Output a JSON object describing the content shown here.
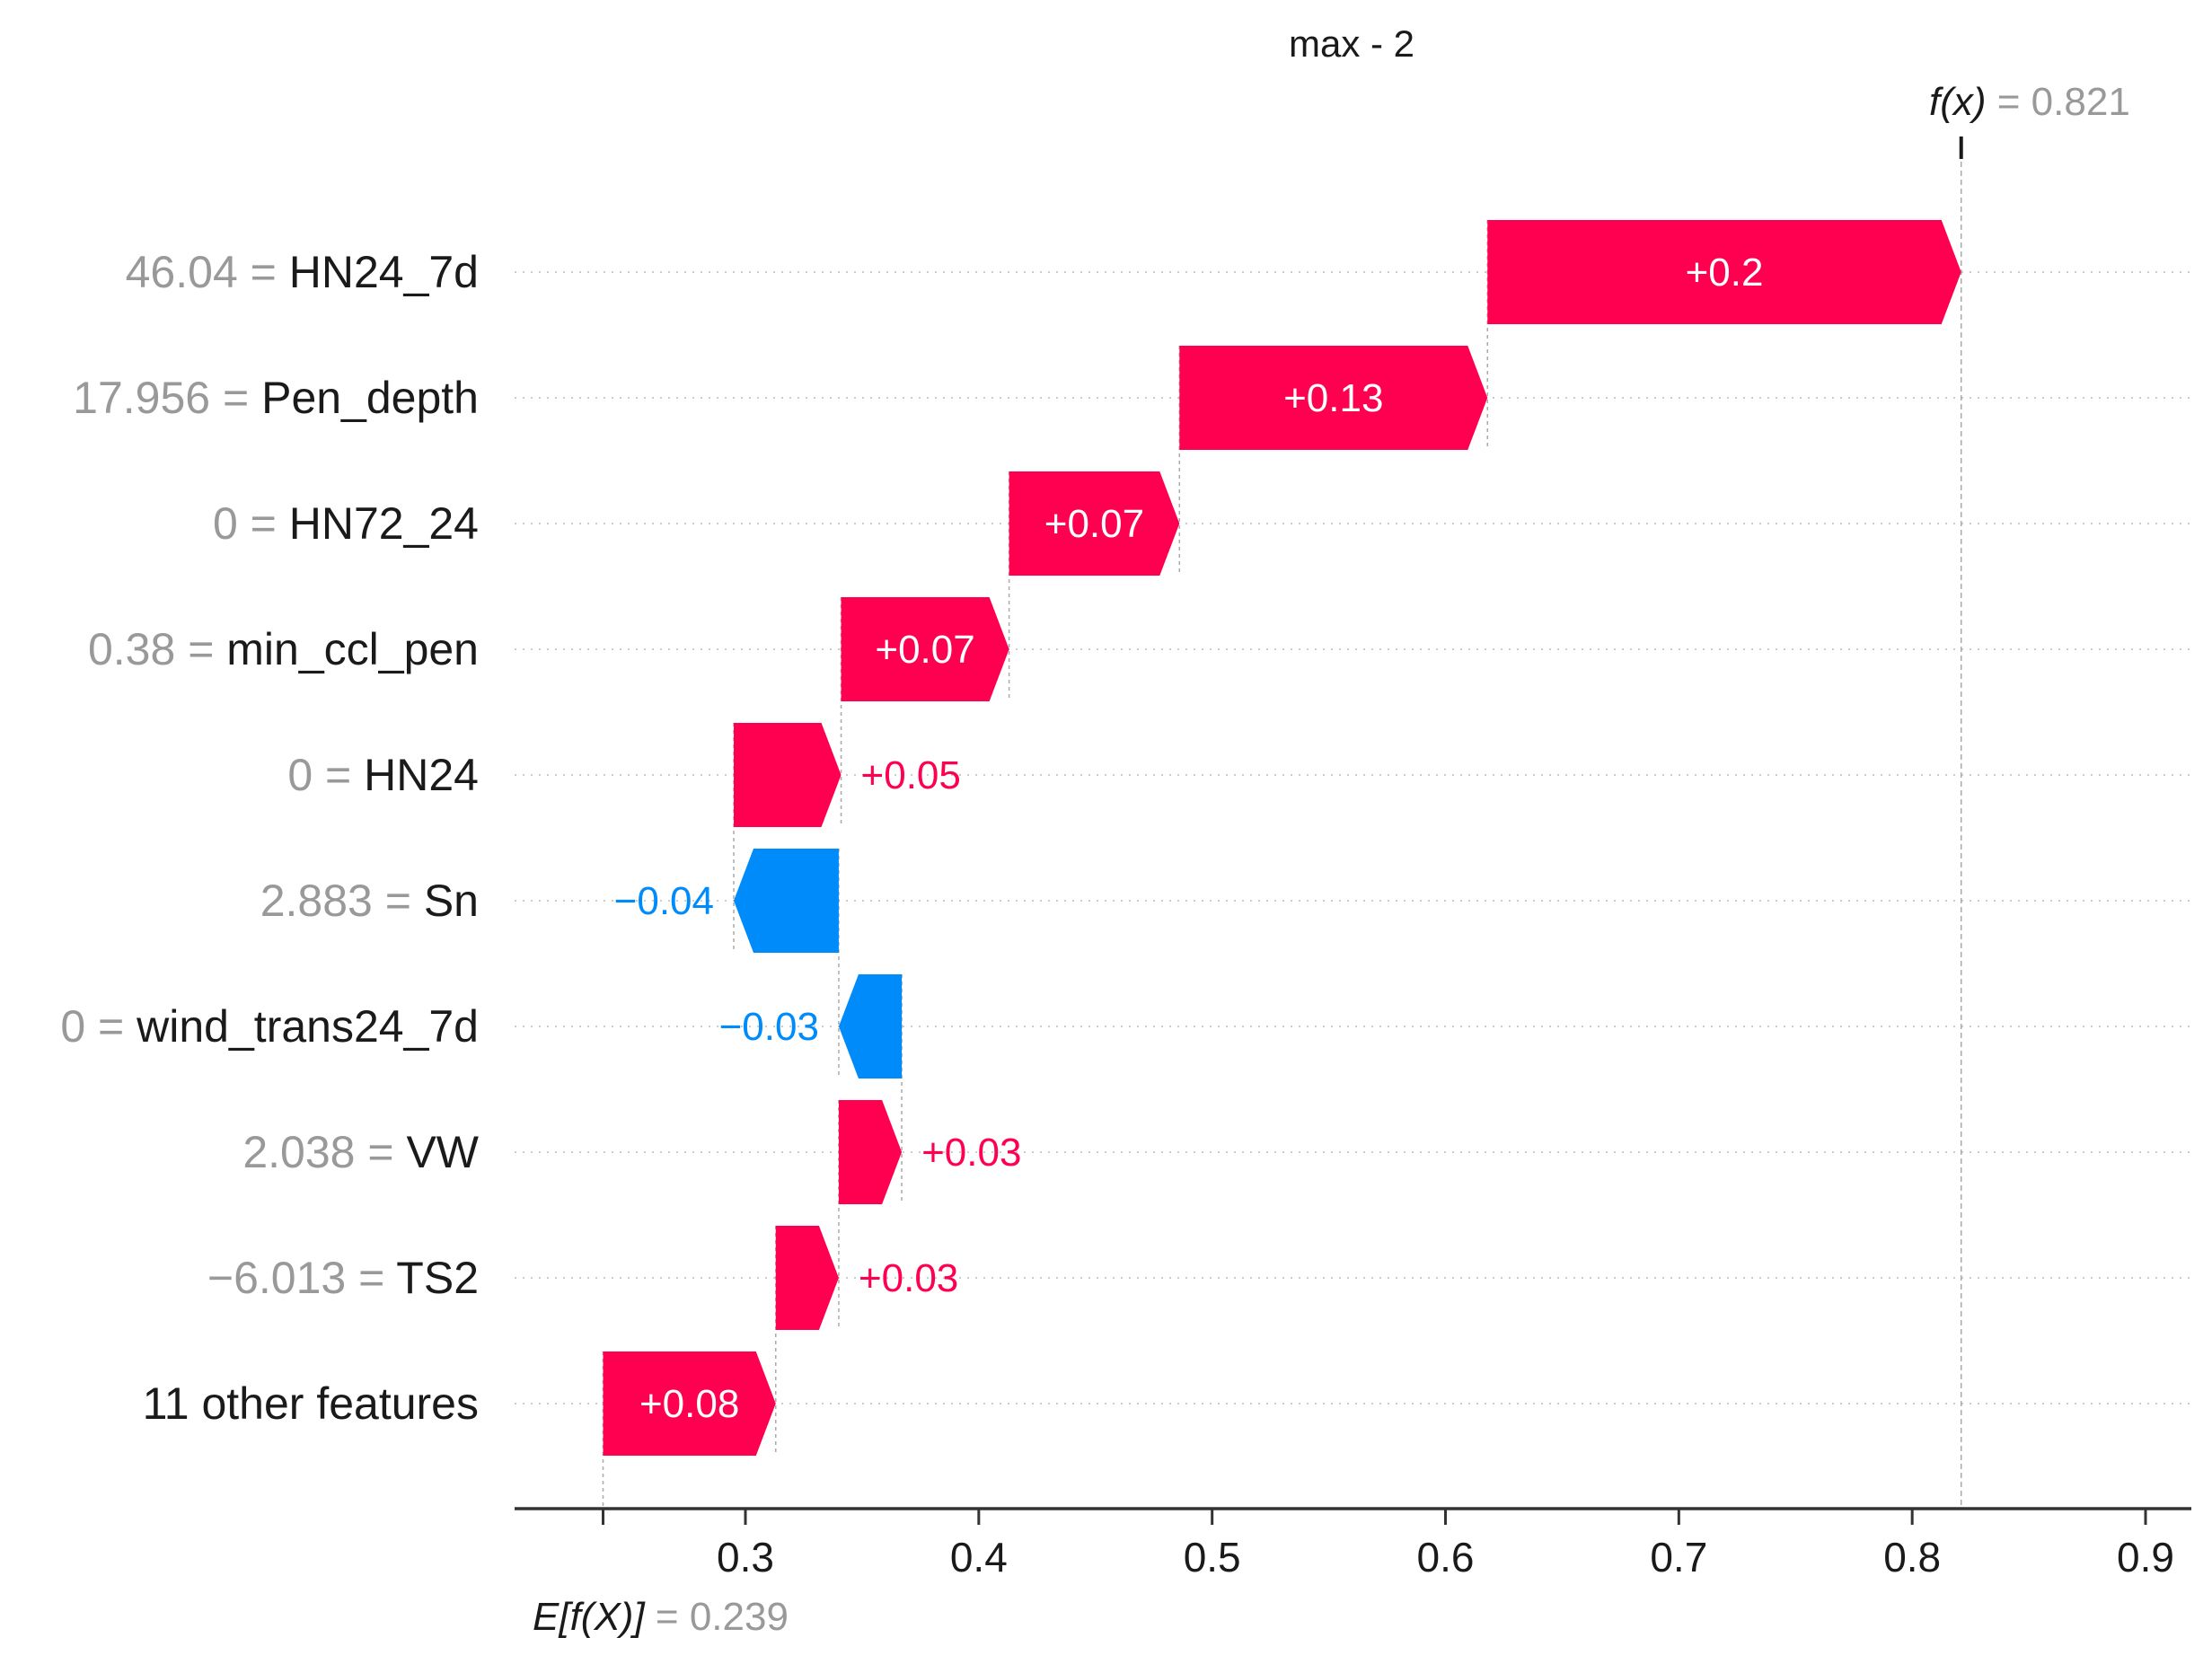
{
  "chart_data": {
    "type": "waterfall",
    "title": "max - 2",
    "base_value": 0.239,
    "output_value": 0.821,
    "base_label": "E[f(X)]",
    "base_value_text": "0.239",
    "output_label": "f(x)",
    "output_value_text": "0.821",
    "xlim": [
      0.16,
      0.92
    ],
    "x_ticks": [
      0.3,
      0.4,
      0.5,
      0.6,
      0.7,
      0.8,
      0.9
    ],
    "x_tick_labels": [
      "0.3",
      "0.4",
      "0.5",
      "0.6",
      "0.7",
      "0.8",
      "0.9"
    ],
    "features": [
      {
        "value": "46.04",
        "name": "HN24_7d",
        "contribution": 0.2,
        "label": "+0.2",
        "start": 0.618,
        "end": 0.821
      },
      {
        "value": "17.956",
        "name": "Pen_depth",
        "contribution": 0.13,
        "label": "+0.13",
        "start": 0.486,
        "end": 0.618
      },
      {
        "value": "0",
        "name": "HN72_24",
        "contribution": 0.07,
        "label": "+0.07",
        "start": 0.413,
        "end": 0.486
      },
      {
        "value": "0.38",
        "name": "min_ccl_pen",
        "contribution": 0.07,
        "label": "+0.07",
        "start": 0.341,
        "end": 0.413
      },
      {
        "value": "0",
        "name": "HN24",
        "contribution": 0.05,
        "label": "+0.05",
        "start": 0.295,
        "end": 0.341
      },
      {
        "value": "2.883",
        "name": "Sn",
        "contribution": -0.04,
        "label": "−0.04",
        "start": 0.34,
        "end": 0.295
      },
      {
        "value": "0",
        "name": "wind_trans24_7d",
        "contribution": -0.03,
        "label": "−0.03",
        "start": 0.367,
        "end": 0.34
      },
      {
        "value": "2.038",
        "name": "VW",
        "contribution": 0.03,
        "label": "+0.03",
        "start": 0.34,
        "end": 0.367
      },
      {
        "value": "−6.013",
        "name": "TS2",
        "contribution": 0.03,
        "label": "+0.03",
        "start": 0.313,
        "end": 0.34
      },
      {
        "value": "",
        "name": "11 other features",
        "contribution": 0.08,
        "label": "+0.08",
        "start": 0.239,
        "end": 0.313
      }
    ],
    "colors": {
      "positive": "#ff0051",
      "negative": "#008bfb",
      "value_text": "#999999",
      "axis": "#333333"
    }
  }
}
